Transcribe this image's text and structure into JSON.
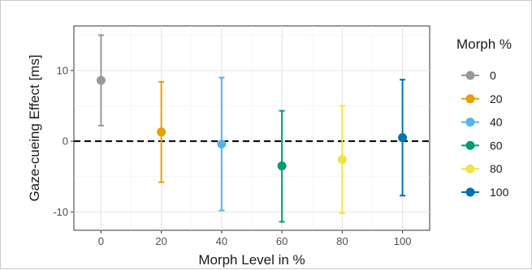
{
  "chart_data": {
    "type": "scatter",
    "xlabel": "Morph Level in %",
    "ylabel": "Gaze-cueing Effect [ms]",
    "x_ticks": [
      "0",
      "20",
      "40",
      "60",
      "80",
      "100"
    ],
    "y_ticks": [
      "10",
      "0",
      "-10"
    ],
    "xlim": [
      -9,
      109
    ],
    "ylim": [
      -12.6,
      16.3
    ],
    "grid": true,
    "reference_line": {
      "y": 0,
      "style": "dashed"
    },
    "legend": {
      "title": "Morph %",
      "placement": "right",
      "items": [
        {
          "label": "0",
          "color": "#999999"
        },
        {
          "label": "20",
          "color": "#E69F00"
        },
        {
          "label": "40",
          "color": "#56B4E9"
        },
        {
          "label": "60",
          "color": "#009E73"
        },
        {
          "label": "80",
          "color": "#F0E442"
        },
        {
          "label": "100",
          "color": "#0072B2"
        }
      ]
    },
    "series": [
      {
        "name": "0",
        "x": 0,
        "y": 8.6,
        "lower": 2.2,
        "upper": 15.0,
        "color": "#999999"
      },
      {
        "name": "20",
        "x": 20,
        "y": 1.3,
        "lower": -5.8,
        "upper": 8.4,
        "color": "#E69F00"
      },
      {
        "name": "40",
        "x": 40,
        "y": -0.4,
        "lower": -9.8,
        "upper": 9.0,
        "color": "#56B4E9"
      },
      {
        "name": "60",
        "x": 60,
        "y": -3.5,
        "lower": -11.4,
        "upper": 4.3,
        "color": "#009E73"
      },
      {
        "name": "80",
        "x": 80,
        "y": -2.6,
        "lower": -10.2,
        "upper": 5.0,
        "color": "#F0E442"
      },
      {
        "name": "100",
        "x": 100,
        "y": 0.5,
        "lower": -7.7,
        "upper": 8.7,
        "color": "#0072B2"
      }
    ]
  }
}
